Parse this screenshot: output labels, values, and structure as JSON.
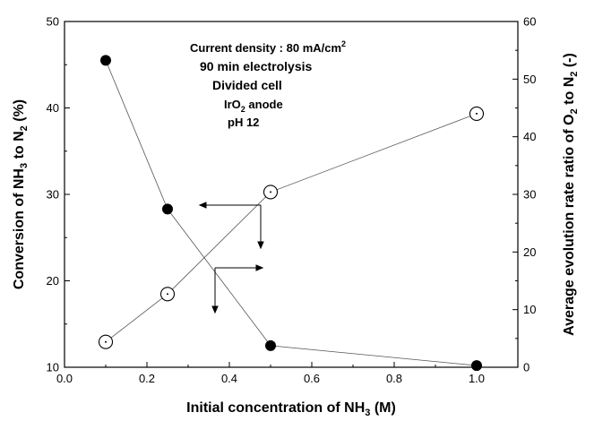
{
  "chart_data": {
    "type": "scatter",
    "title": "",
    "x_axis": {
      "label_parts": [
        "Initial concentration of NH",
        "3",
        " (M)"
      ],
      "range": [
        0.0,
        1.1
      ],
      "ticks": [
        "0.0",
        "0.2",
        "0.4",
        "0.6",
        "0.8",
        "1.0"
      ]
    },
    "y_left": {
      "label_parts": [
        "Conversion  of NH",
        "3",
        " to N",
        "2",
        " (%)"
      ],
      "range": [
        10,
        50
      ],
      "ticks": [
        "10",
        "20",
        "30",
        "40",
        "50"
      ]
    },
    "y_right": {
      "label_parts": [
        "Average evolution rate ratio of O",
        "2",
        " to N",
        "2",
        "  (-)"
      ],
      "range": [
        0,
        60
      ],
      "ticks": [
        "0",
        "10",
        "20",
        "30",
        "40",
        "50",
        "60"
      ]
    },
    "series": [
      {
        "axis": "left",
        "marker": "filled-circle",
        "x": [
          0.1,
          0.25,
          0.5,
          1.0
        ],
        "y": [
          45.5,
          28.3,
          12.5,
          10.2
        ]
      },
      {
        "axis": "right",
        "marker": "open-circle-dot",
        "x": [
          0.1,
          0.25,
          0.5,
          1.0
        ],
        "y": [
          4.4,
          12.7,
          30.4,
          44.0
        ]
      }
    ],
    "annotation": {
      "current_density": [
        "Current density : 80 mA/cm",
        "2"
      ],
      "electrolysis": "90 min electrolysis",
      "cell": "Divided cell",
      "anode": [
        "IrO",
        "2",
        " anode"
      ],
      "ph": "pH 12"
    },
    "grid": false,
    "legend": "none"
  }
}
